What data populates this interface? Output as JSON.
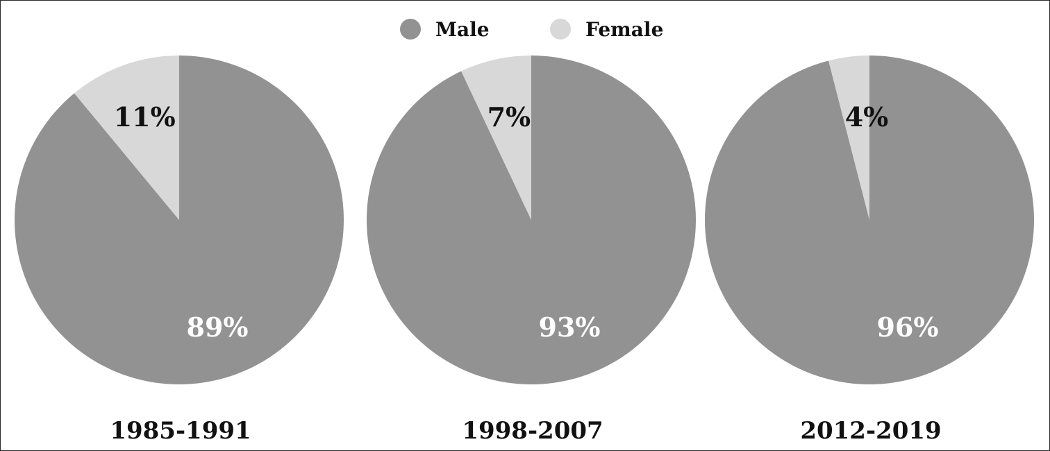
{
  "colors": {
    "male": "#929292",
    "female": "#d8d8d8",
    "label_dark": "#111111",
    "label_light": "#ffffff"
  },
  "legend": [
    {
      "label": "Male",
      "color": "#929292"
    },
    {
      "label": "Female",
      "color": "#d8d8d8"
    }
  ],
  "chart_data": [
    {
      "type": "pie",
      "title": "1985-1991",
      "slices": [
        {
          "name": "Male",
          "value": 89,
          "label": "89%"
        },
        {
          "name": "Female",
          "value": 11,
          "label": "11%"
        }
      ]
    },
    {
      "type": "pie",
      "title": "1998-2007",
      "slices": [
        {
          "name": "Male",
          "value": 93,
          "label": "93%"
        },
        {
          "name": "Female",
          "value": 7,
          "label": "7%"
        }
      ]
    },
    {
      "type": "pie",
      "title": "2012-2019",
      "slices": [
        {
          "name": "Male",
          "value": 96,
          "label": "96%"
        },
        {
          "name": "Female",
          "value": 4,
          "label": "4%"
        }
      ]
    }
  ]
}
